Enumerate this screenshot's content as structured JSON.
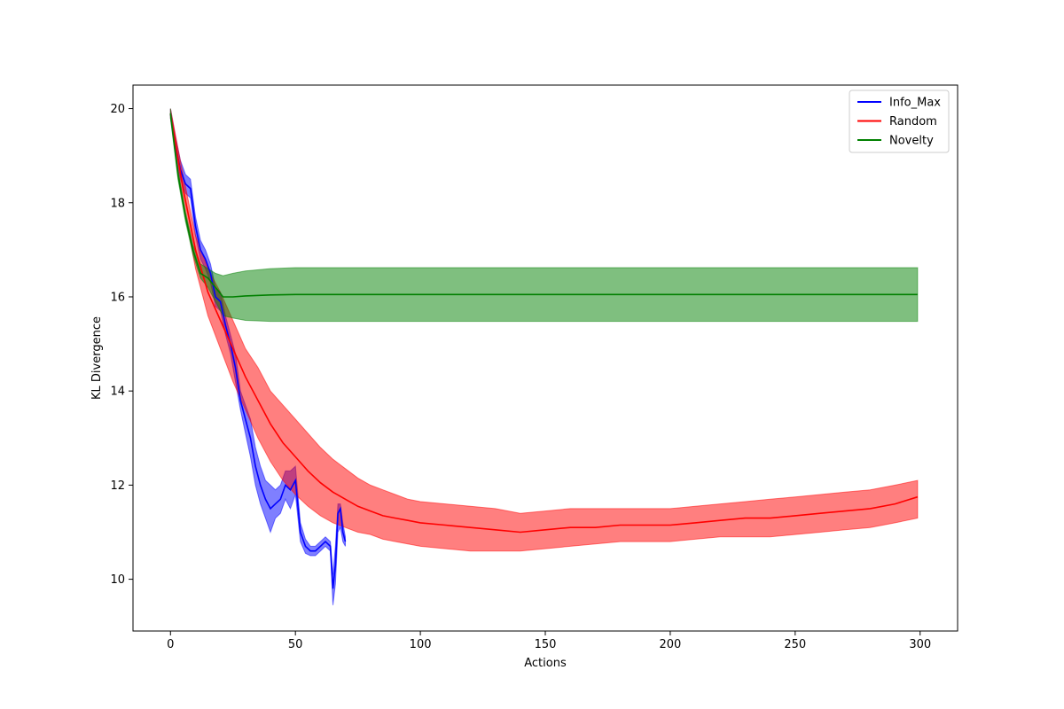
{
  "chart_data": {
    "type": "line",
    "title": "",
    "xlabel": "Actions",
    "ylabel": "KL Divergence",
    "xlim": [
      -15,
      315
    ],
    "ylim": [
      8.9,
      20.5
    ],
    "xticks": [
      0,
      50,
      100,
      150,
      200,
      250,
      300
    ],
    "yticks": [
      10,
      12,
      14,
      16,
      18,
      20
    ],
    "grid": false,
    "legend_position": "top-right",
    "series": [
      {
        "name": "Info_Max",
        "color": "#0000ff",
        "x": [
          0,
          2,
          4,
          6,
          8,
          10,
          12,
          14,
          16,
          18,
          20,
          22,
          24,
          26,
          28,
          30,
          32,
          34,
          36,
          38,
          40,
          42,
          44,
          46,
          48,
          50,
          52,
          54,
          56,
          58,
          60,
          62,
          64,
          65,
          66,
          67,
          68,
          69,
          70
        ],
        "y": [
          19.9,
          19.2,
          18.7,
          18.4,
          18.3,
          17.5,
          17.0,
          16.8,
          16.5,
          16.0,
          15.9,
          15.4,
          15.0,
          14.5,
          13.8,
          13.4,
          13.0,
          12.4,
          12.0,
          11.7,
          11.5,
          11.6,
          11.7,
          12.0,
          11.9,
          12.1,
          11.0,
          10.7,
          10.6,
          10.6,
          10.7,
          10.8,
          10.7,
          9.8,
          10.3,
          11.4,
          11.5,
          11.0,
          10.8
        ],
        "lower": [
          19.8,
          19.0,
          18.5,
          18.2,
          18.1,
          17.3,
          16.8,
          16.6,
          16.3,
          15.8,
          15.7,
          15.2,
          14.8,
          14.2,
          13.6,
          13.1,
          12.6,
          12.0,
          11.6,
          11.3,
          11.0,
          11.3,
          11.4,
          11.7,
          11.5,
          11.8,
          10.8,
          10.55,
          10.5,
          10.5,
          10.6,
          10.7,
          10.6,
          9.45,
          9.9,
          11.0,
          11.1,
          10.8,
          10.7
        ],
        "upper": [
          20.0,
          19.4,
          18.9,
          18.6,
          18.5,
          17.7,
          17.2,
          17.0,
          16.7,
          16.2,
          16.1,
          15.6,
          15.2,
          14.8,
          14.0,
          13.7,
          13.4,
          12.8,
          12.4,
          12.1,
          12.0,
          11.9,
          12.0,
          12.3,
          12.3,
          12.4,
          11.2,
          10.85,
          10.7,
          10.7,
          10.8,
          10.9,
          10.8,
          10.1,
          10.7,
          11.6,
          11.6,
          11.2,
          10.9
        ]
      },
      {
        "name": "Random",
        "color": "#ff0000",
        "x": [
          0,
          5,
          10,
          15,
          20,
          25,
          30,
          35,
          40,
          45,
          50,
          55,
          60,
          65,
          70,
          75,
          80,
          85,
          90,
          95,
          100,
          110,
          120,
          130,
          140,
          150,
          160,
          170,
          180,
          190,
          200,
          210,
          220,
          230,
          240,
          250,
          260,
          270,
          280,
          290,
          299
        ],
        "y": [
          19.9,
          18.3,
          17.0,
          16.1,
          15.5,
          14.9,
          14.3,
          13.8,
          13.3,
          12.9,
          12.6,
          12.3,
          12.05,
          11.85,
          11.7,
          11.55,
          11.45,
          11.35,
          11.3,
          11.25,
          11.2,
          11.15,
          11.1,
          11.05,
          11.0,
          11.05,
          11.1,
          11.1,
          11.15,
          11.15,
          11.15,
          11.2,
          11.25,
          11.3,
          11.3,
          11.35,
          11.4,
          11.45,
          11.5,
          11.6,
          11.75
        ],
        "lower": [
          19.8,
          18.0,
          16.6,
          15.6,
          14.9,
          14.2,
          13.6,
          13.0,
          12.5,
          12.1,
          11.8,
          11.55,
          11.35,
          11.2,
          11.1,
          11.0,
          10.95,
          10.85,
          10.8,
          10.75,
          10.7,
          10.65,
          10.6,
          10.6,
          10.6,
          10.65,
          10.7,
          10.75,
          10.8,
          10.8,
          10.8,
          10.85,
          10.9,
          10.9,
          10.9,
          10.95,
          11.0,
          11.05,
          11.1,
          11.2,
          11.3
        ],
        "upper": [
          20.0,
          18.6,
          17.3,
          16.6,
          16.1,
          15.5,
          14.9,
          14.5,
          14.0,
          13.7,
          13.4,
          13.1,
          12.8,
          12.55,
          12.35,
          12.15,
          12.0,
          11.9,
          11.8,
          11.7,
          11.65,
          11.6,
          11.55,
          11.5,
          11.4,
          11.45,
          11.5,
          11.5,
          11.5,
          11.5,
          11.5,
          11.55,
          11.6,
          11.65,
          11.7,
          11.75,
          11.8,
          11.85,
          11.9,
          12.0,
          12.1
        ]
      },
      {
        "name": "Novelty",
        "color": "#008000",
        "x": [
          0,
          3,
          6,
          9,
          12,
          15,
          18,
          21,
          25,
          30,
          40,
          50,
          60,
          80,
          100,
          150,
          200,
          250,
          299
        ],
        "y": [
          19.9,
          18.6,
          17.7,
          17.0,
          16.5,
          16.4,
          16.2,
          16.0,
          16.0,
          16.02,
          16.04,
          16.05,
          16.05,
          16.05,
          16.05,
          16.05,
          16.05,
          16.05,
          16.05
        ],
        "lower": [
          19.8,
          18.5,
          17.6,
          16.9,
          16.4,
          16.2,
          15.9,
          15.6,
          15.55,
          15.5,
          15.48,
          15.48,
          15.48,
          15.48,
          15.48,
          15.48,
          15.48,
          15.48,
          15.48
        ],
        "upper": [
          20.0,
          18.7,
          17.8,
          17.1,
          16.7,
          16.6,
          16.5,
          16.45,
          16.5,
          16.55,
          16.6,
          16.62,
          16.62,
          16.62,
          16.62,
          16.62,
          16.62,
          16.62,
          16.62
        ]
      }
    ]
  }
}
